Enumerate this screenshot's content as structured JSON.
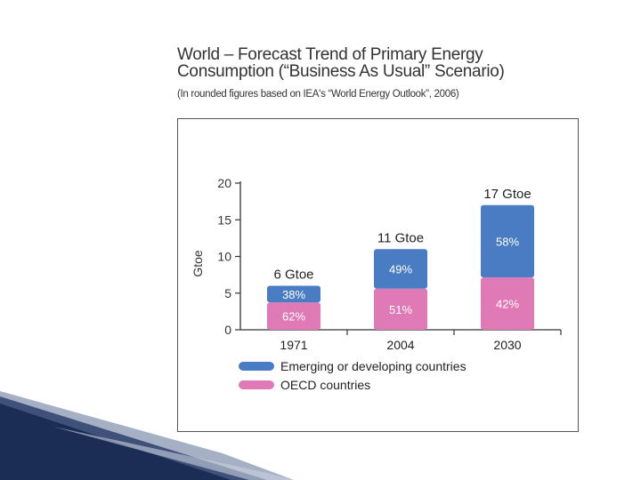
{
  "colors": {
    "emerging": "#4a7cc4",
    "oecd": "#e07ab6",
    "axis": "#333333",
    "decor_dark": "#1c2d55",
    "decor_mid": "#5d6f96"
  },
  "chart_data": {
    "type": "bar",
    "stacked": true,
    "title_lines": [
      "World – Forecast Trend of Primary Energy",
      "Consumption (“Business As Usual” Scenario)"
    ],
    "subtitle": "(In rounded figures based on IEA's “World Energy Outlook”, 2006)",
    "ylabel": "Gtoe",
    "xlabel": "",
    "ylim": [
      0,
      20
    ],
    "yticks": [
      0,
      5,
      10,
      15,
      20
    ],
    "categories": [
      "1971",
      "2004",
      "2030"
    ],
    "totals": [
      6,
      11,
      17
    ],
    "total_labels": [
      "6 Gtoe",
      "11 Gtoe",
      "17 Gtoe"
    ],
    "series": [
      {
        "name": "OECD countries",
        "color_key": "oecd",
        "percent_labels": [
          "62%",
          "51%",
          "42%"
        ],
        "values": [
          3.72,
          5.61,
          7.14
        ]
      },
      {
        "name": "Emerging or developing countries",
        "color_key": "emerging",
        "percent_labels": [
          "38%",
          "49%",
          "58%"
        ],
        "values": [
          2.28,
          5.39,
          9.86
        ]
      }
    ],
    "legend_order": [
      "Emerging or developing countries",
      "OECD countries"
    ],
    "legend_position": "bottom-left",
    "grid": false
  }
}
